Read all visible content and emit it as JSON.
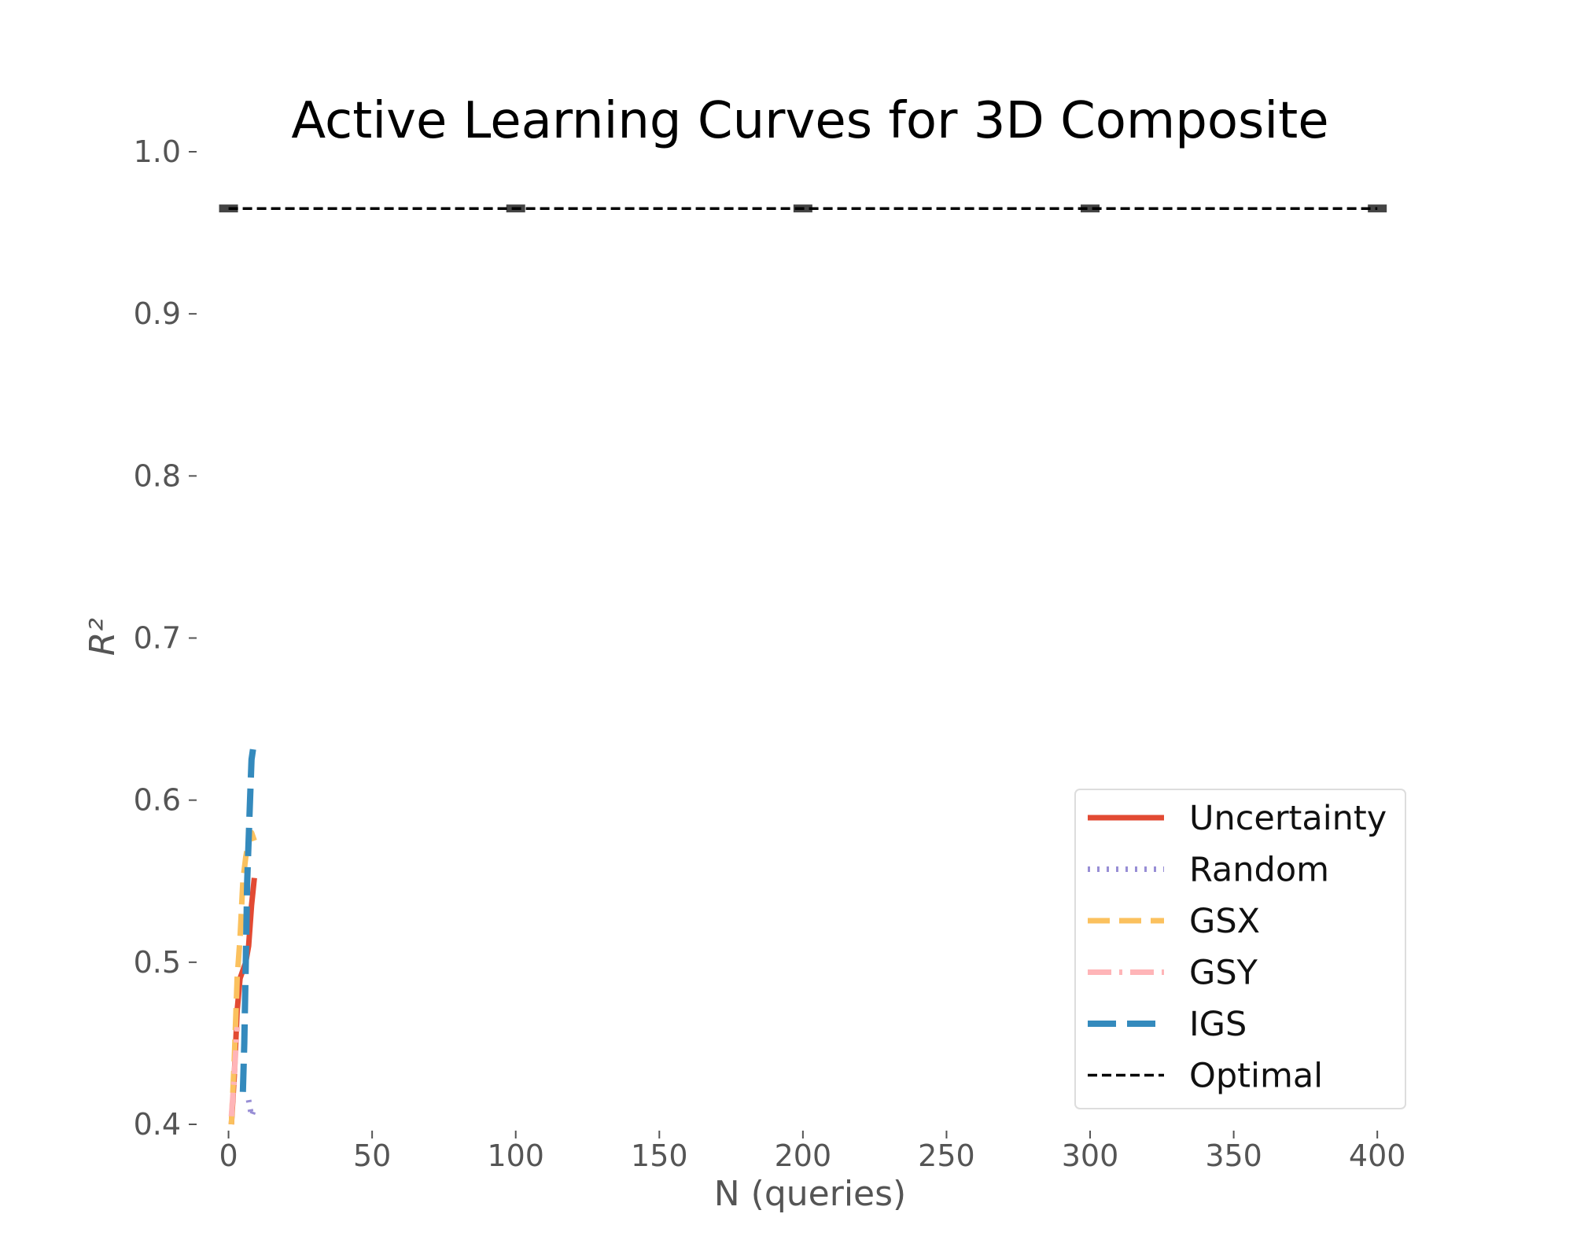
{
  "chart_data": {
    "type": "line",
    "title": "Active Learning Curves for 3D Composite",
    "xlabel": "N (queries)",
    "ylabel": "R²",
    "xlim": [
      -7,
      412
    ],
    "ylim": [
      0.4,
      1.0
    ],
    "xticks": [
      "0",
      "50",
      "100",
      "150",
      "200",
      "250",
      "300",
      "350",
      "400"
    ],
    "yticks": [
      "0.4",
      "0.5",
      "0.6",
      "0.7",
      "0.8",
      "0.9",
      "1.0"
    ],
    "grid": false,
    "legend_position": "lower-right",
    "series": [
      {
        "name": "Uncertainty",
        "color": "#E24A33",
        "style": "solid",
        "x": [
          1,
          2,
          3,
          4,
          5,
          6,
          7,
          8,
          9
        ],
        "y": [
          0.4,
          0.43,
          0.47,
          0.49,
          0.495,
          0.5,
          0.51,
          0.535,
          0.552
        ]
      },
      {
        "name": "Random",
        "color": "#988ED5",
        "style": "dotted",
        "x": [
          7,
          8,
          9
        ],
        "y": [
          0.415,
          0.405,
          0.41
        ]
      },
      {
        "name": "GSX",
        "color": "#FBC15E",
        "style": "dashed",
        "x": [
          1,
          2,
          3,
          4,
          5,
          6,
          7,
          8,
          9
        ],
        "y": [
          0.4,
          0.44,
          0.49,
          0.515,
          0.55,
          0.565,
          0.575,
          0.58,
          0.575
        ]
      },
      {
        "name": "GSY",
        "color": "#FFB5B8",
        "style": "dashdot",
        "x": [
          1,
          2,
          3
        ],
        "y": [
          0.405,
          0.43,
          0.46
        ]
      },
      {
        "name": "IGS",
        "color": "#348ABD",
        "style": "longdash",
        "x": [
          5,
          5.5,
          6,
          6.5,
          7,
          7.5,
          8,
          9
        ],
        "y": [
          0.42,
          0.45,
          0.5,
          0.55,
          0.575,
          0.6,
          0.625,
          0.637
        ]
      },
      {
        "name": "Optimal",
        "color": "#000000",
        "style": "finedash",
        "x": [
          0,
          400
        ],
        "y": [
          0.965,
          0.965
        ],
        "errorbar_x": [
          0,
          100,
          200,
          300,
          400
        ]
      }
    ]
  }
}
